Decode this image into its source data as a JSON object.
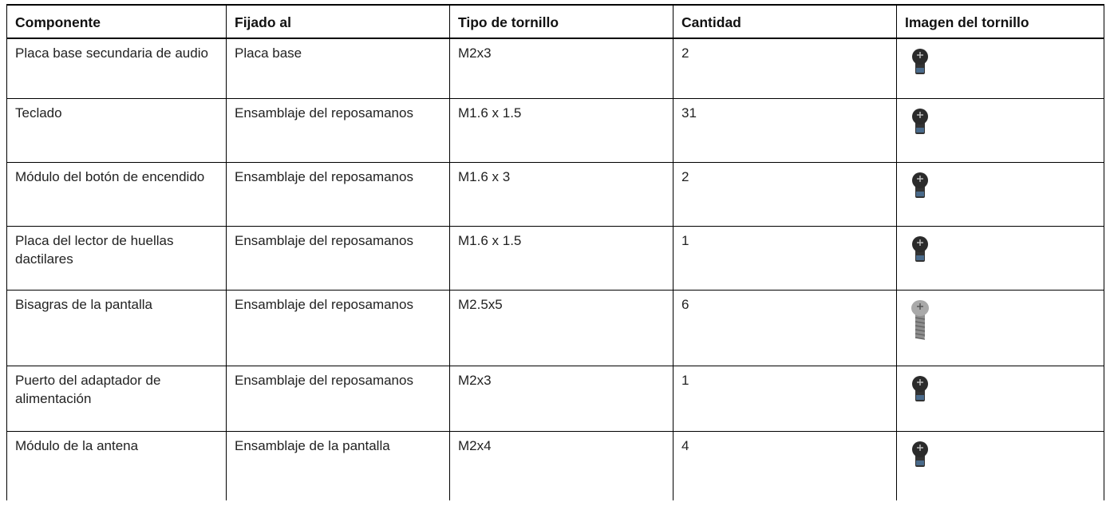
{
  "table": {
    "headers": [
      "Componente",
      "Fijado al",
      "Tipo de tornillo",
      "Cantidad",
      "Imagen del tornillo"
    ],
    "rows": [
      [
        "Placa base secundaria de audio",
        "Placa base",
        "M2x3",
        2
      ],
      [
        "Teclado",
        "Ensamblaje del reposamanos",
        "M1.6 x 1.5",
        31
      ],
      [
        "Módulo del botón de encendido",
        "Ensamblaje del reposamanos",
        "M1.6 x 3",
        2
      ],
      [
        "Placa del lector de huellas dactilares",
        "Ensamblaje del reposamanos",
        "M1.6 x 1.5",
        1
      ],
      [
        "Bisagras de la pantalla",
        "Ensamblaje del reposamanos",
        "M2.5x5",
        6
      ],
      [
        "Puerto del adaptador de alimentación",
        "Ensamblaje del reposamanos",
        "M2x3",
        1
      ],
      [
        "Módulo de la antena",
        "Ensamblaje de la pantalla",
        "M2x4",
        4
      ]
    ]
  }
}
